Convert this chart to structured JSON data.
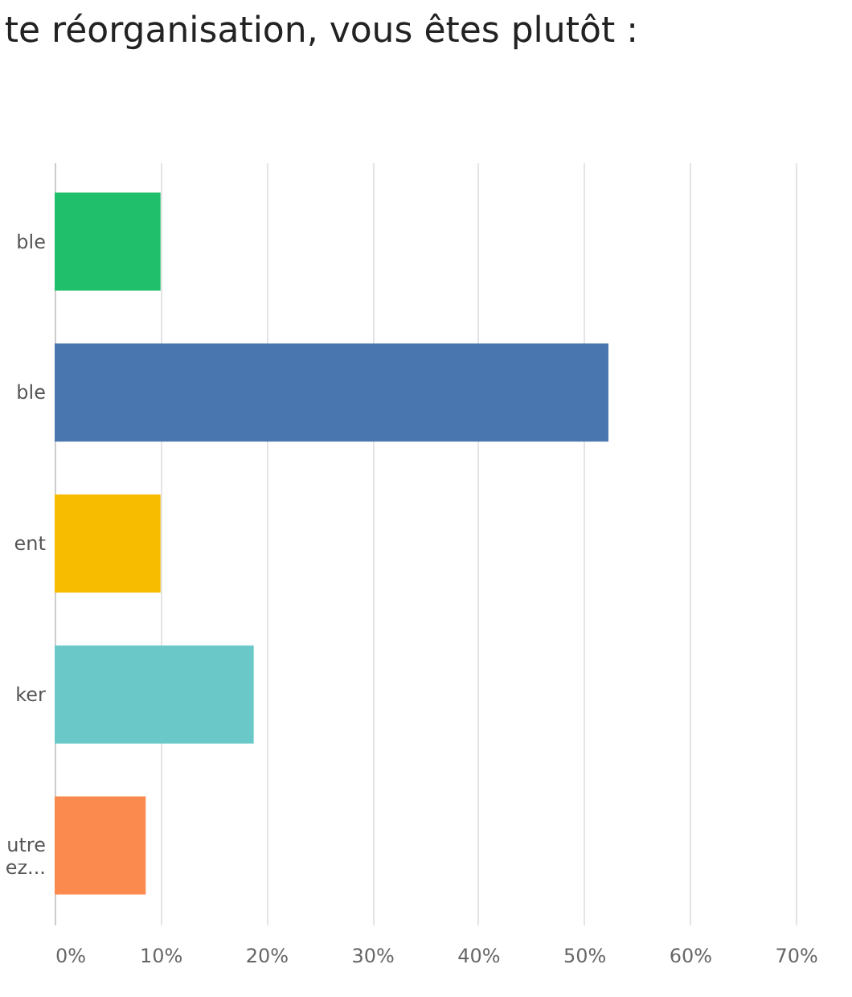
{
  "chart_data": {
    "type": "bar",
    "orientation": "horizontal",
    "title": "te réorganisation, vous êtes plutôt :",
    "categories": [
      "ble",
      "ble",
      "ent",
      "ker",
      "utre\nez..."
    ],
    "values": [
      10,
      52.3,
      10,
      18.8,
      8.6
    ],
    "colors": [
      "#1fbf6b",
      "#4a76b0",
      "#f7bb00",
      "#6ac8c8",
      "#fb8a4e"
    ],
    "xlim": [
      0,
      75
    ],
    "xticks": [
      {
        "value": 0,
        "label": "0%"
      },
      {
        "value": 10,
        "label": "10%"
      },
      {
        "value": 20,
        "label": "20%"
      },
      {
        "value": 30,
        "label": "30%"
      },
      {
        "value": 40,
        "label": "40%"
      },
      {
        "value": 50,
        "label": "50%"
      },
      {
        "value": 60,
        "label": "60%"
      },
      {
        "value": 70,
        "label": "70%"
      }
    ],
    "grid": "x"
  }
}
